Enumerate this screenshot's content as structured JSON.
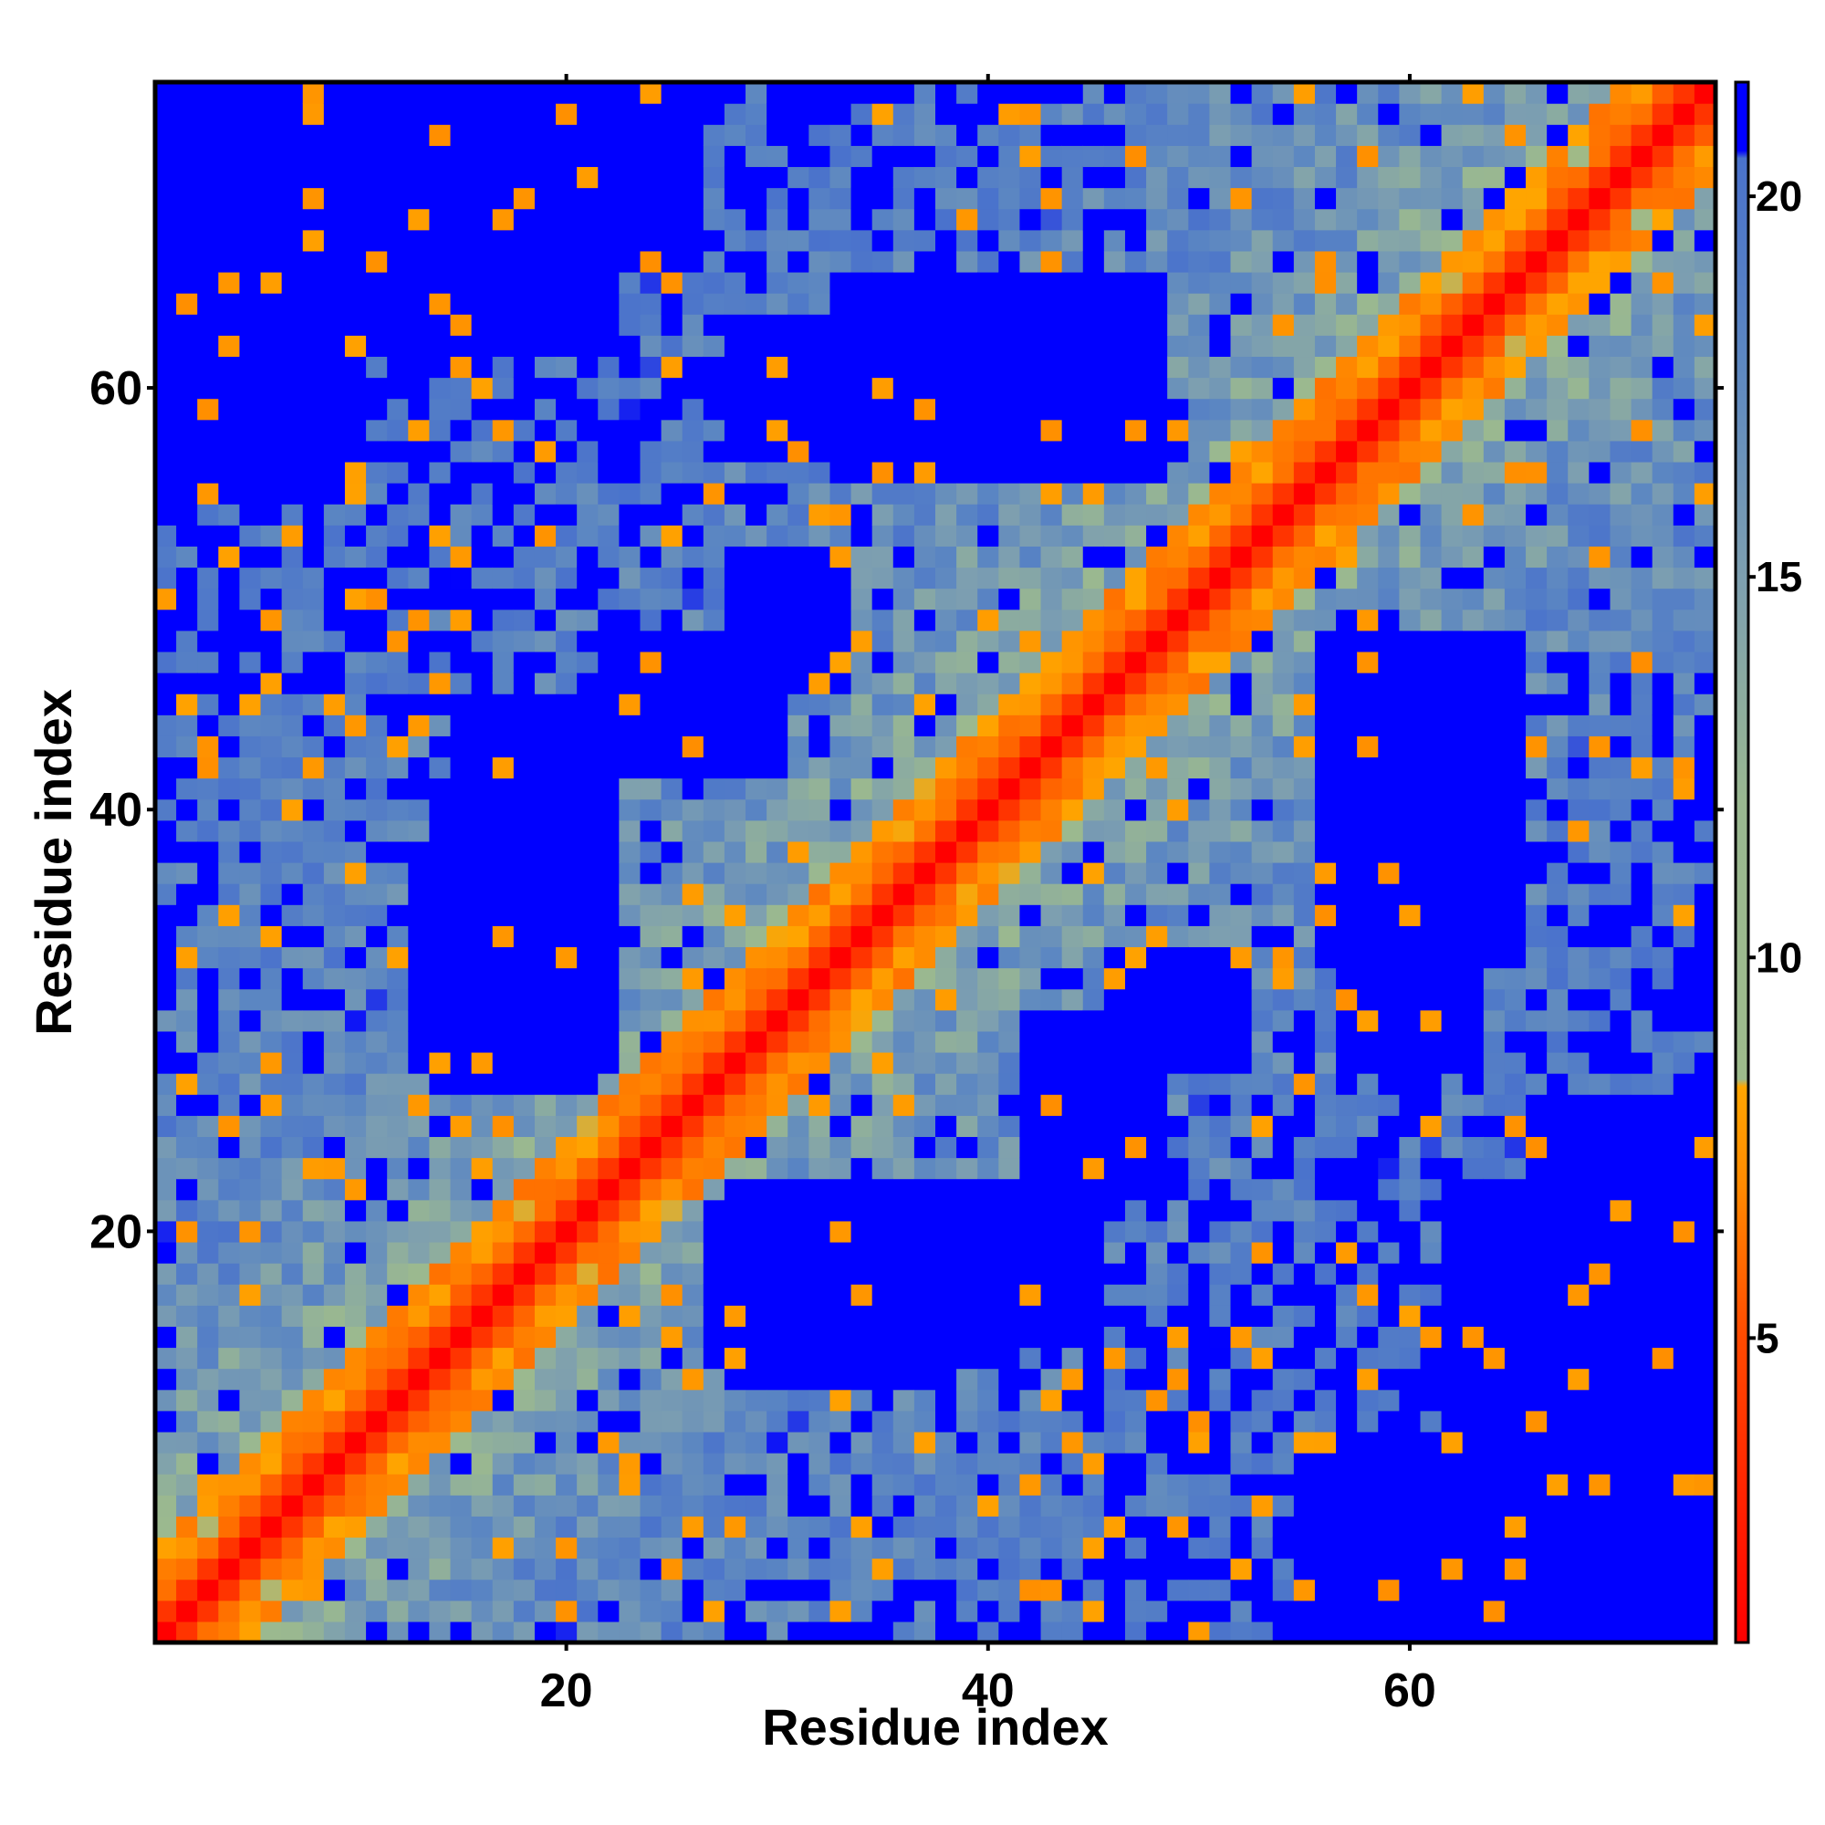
{
  "chart_data": {
    "type": "heatmap",
    "title": "",
    "xlabel": "Residue index",
    "ylabel": "Residue index",
    "n_residues": 74,
    "xlim": [
      1,
      74
    ],
    "ylim": [
      1,
      74
    ],
    "x_ticks": [
      "20",
      "40",
      "60"
    ],
    "y_ticks": [
      "20",
      "40",
      "60"
    ],
    "colorbar": {
      "ticks": [
        "5",
        "10",
        "15",
        "20"
      ],
      "range": [
        1,
        21.5
      ],
      "stops": [
        {
          "value": 1,
          "color": "#ff0000"
        },
        {
          "value": 5,
          "color": "#ff4a00"
        },
        {
          "value": 7,
          "color": "#ff8a00"
        },
        {
          "value": 8.3,
          "color": "#ffa500"
        },
        {
          "value": 8.4,
          "color": "#9dbb8c"
        },
        {
          "value": 12,
          "color": "#9ab890"
        },
        {
          "value": 15,
          "color": "#7d9fb0"
        },
        {
          "value": 18,
          "color": "#5b86c2"
        },
        {
          "value": 20.5,
          "color": "#4a72cc"
        },
        {
          "value": 20.6,
          "color": "#0000ff"
        }
      ]
    },
    "matrix_description": "Symmetric residue-residue distance map; zero on the diagonal, increasing with |i-j|; values above 20.5 are saturated blue.",
    "blue_regions": [
      {
        "x": [
          1,
          10
        ],
        "y": [
          55,
          74
        ]
      },
      {
        "x": [
          14,
          20
        ],
        "y": [
          27,
          38
        ]
      },
      {
        "x": [
          33,
          48
        ],
        "y": [
          56,
          65
        ]
      },
      {
        "x": [
          57,
          63
        ],
        "y": [
          28,
          46
        ]
      },
      {
        "x": [
          28,
          36
        ],
        "y": [
          13,
          22
        ]
      },
      {
        "x": [
          56,
          74
        ],
        "y": [
          1,
          10
        ]
      },
      {
        "x": [
          16,
          26
        ],
        "y": [
          66,
          74
        ]
      },
      {
        "x": [
          37,
          45
        ],
        "y": [
          15,
          22
        ]
      },
      {
        "x": [
          46,
          52
        ],
        "y": [
          28,
          33
        ]
      },
      {
        "x": [
          62,
          74
        ],
        "y": [
          10,
          22
        ]
      },
      {
        "x": [
          22,
          30
        ],
        "y": [
          42,
          48
        ]
      }
    ]
  }
}
